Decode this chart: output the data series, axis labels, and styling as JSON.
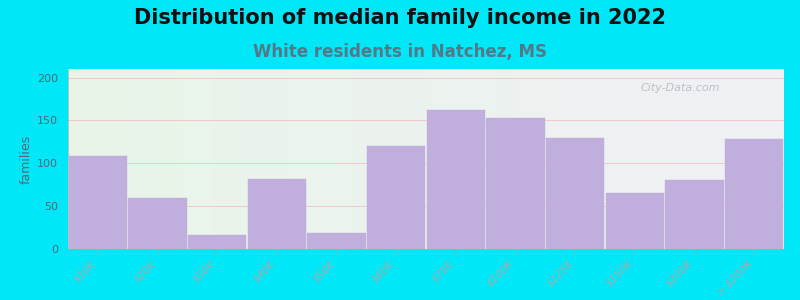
{
  "title": "Distribution of median family income in 2022",
  "subtitle": "White residents in Natchez, MS",
  "categories": [
    "$10K",
    "$20K",
    "$30K",
    "$40K",
    "$50K",
    "$60K",
    "$75K",
    "$100K",
    "$125K",
    "$150K",
    "$200K",
    "> $200K"
  ],
  "values": [
    108,
    60,
    16,
    82,
    19,
    120,
    162,
    153,
    130,
    65,
    80,
    128
  ],
  "bar_color": "#c0aedd",
  "bar_edge_color": "#c0aedd",
  "background_outer": "#00e8f8",
  "ylabel": "families",
  "ylim": [
    0,
    210
  ],
  "yticks": [
    0,
    50,
    100,
    150,
    200
  ],
  "title_fontsize": 15,
  "subtitle_fontsize": 12,
  "subtitle_color": "#557788",
  "watermark": "City-Data.com",
  "title_fontweight": "bold",
  "grid_color": "#f0c8c8",
  "bg_left_color": "#e8f5e8",
  "bg_right_color": "#f0f0f0"
}
